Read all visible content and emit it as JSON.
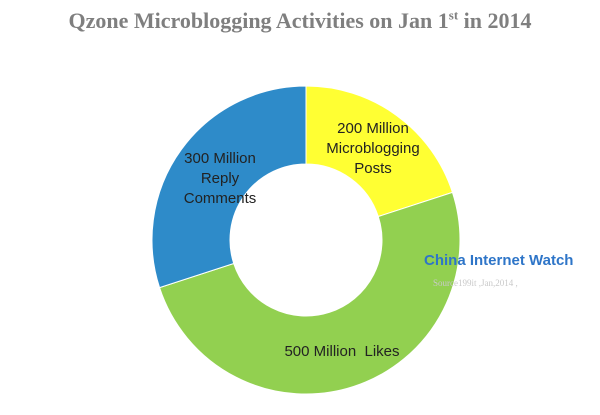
{
  "chart_data": {
    "type": "pie",
    "title_main": "Qzone Microblogging Activities on Jan 1",
    "title_sup": "st",
    "title_tail": " in 2014",
    "slices": [
      {
        "label_lines": [
          "200 Million",
          "Microblogging",
          "Posts"
        ],
        "value": 200,
        "color": "#ffff33"
      },
      {
        "label_lines": [
          "500 Million  Likes"
        ],
        "value": 500,
        "color": "#92d050"
      },
      {
        "label_lines": [
          "300 Million",
          "Reply",
          "Comments"
        ],
        "value": 300,
        "color": "#2e8bc9"
      }
    ],
    "donut": true,
    "start_angle_deg": 0
  },
  "watermark": {
    "brand": "China Internet Watch",
    "source": "Source199it ,Jan,2014 ,"
  }
}
